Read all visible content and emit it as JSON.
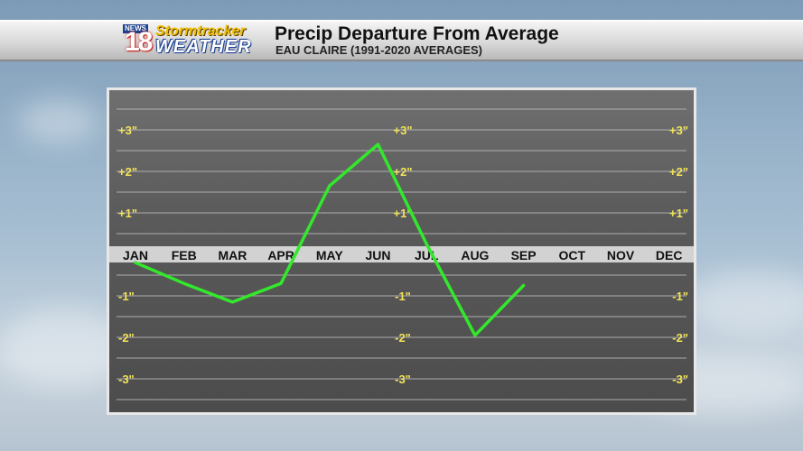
{
  "header": {
    "title": "Precip Departure From Average",
    "subtitle": "EAU CLAIRE (1991-2020 AVERAGES)",
    "logo_news": "NEWS",
    "logo_number": "18",
    "logo_line1": "Stormtracker",
    "logo_line2": "WEATHER"
  },
  "colors": {
    "line": "#33e82c",
    "tick_labels": "#f2e35a",
    "gridlines": "#bdbdbd",
    "month_band": "#d9d9d9"
  },
  "chart_data": {
    "type": "line",
    "title": "Precip Departure From Average",
    "subtitle": "EAU CLAIRE (1991-2020 AVERAGES)",
    "categories": [
      "JAN",
      "FEB",
      "MAR",
      "APR",
      "MAY",
      "JUN",
      "JUL",
      "AUG",
      "SEP",
      "OCT",
      "NOV",
      "DEC"
    ],
    "values": [
      -0.2,
      -0.7,
      -1.15,
      -0.7,
      1.65,
      2.65,
      0.25,
      -1.95,
      -0.75,
      null,
      null,
      null
    ],
    "ylim": [
      -3.5,
      3.5
    ],
    "y_ticks": [
      3,
      2,
      1,
      -1,
      -2,
      -3
    ],
    "y_tick_labels": [
      "+3\"",
      "+2\"",
      "+1\"",
      "-1\"",
      "-2\"",
      "-3\""
    ],
    "y_label_columns": 3,
    "grid": true,
    "legend": "none"
  }
}
